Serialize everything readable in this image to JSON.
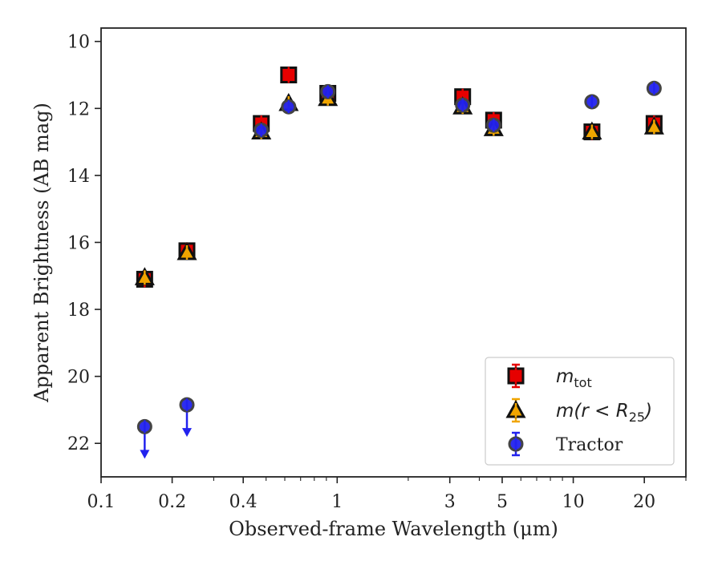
{
  "chart_data": {
    "type": "scatter",
    "xscale": "log",
    "yinverted": true,
    "xlabel": "Observed-frame Wavelength (μm)",
    "ylabel": "Apparent Brightness (AB mag)",
    "xlim": [
      0.1,
      30
    ],
    "ylim": [
      23,
      9.6
    ],
    "xticks": [
      {
        "value": 0.1,
        "label": "0.1"
      },
      {
        "value": 0.2,
        "label": "0.2"
      },
      {
        "value": 0.4,
        "label": "0.4"
      },
      {
        "value": 1,
        "label": "1"
      },
      {
        "value": 3,
        "label": "3"
      },
      {
        "value": 5,
        "label": "5"
      },
      {
        "value": 10,
        "label": "10"
      },
      {
        "value": 20,
        "label": "20"
      }
    ],
    "yticks": [
      {
        "value": 10,
        "label": "10"
      },
      {
        "value": 12,
        "label": "12"
      },
      {
        "value": 14,
        "label": "14"
      },
      {
        "value": 16,
        "label": "16"
      },
      {
        "value": 18,
        "label": "18"
      },
      {
        "value": 20,
        "label": "20"
      },
      {
        "value": 22,
        "label": "22"
      }
    ],
    "grid": false,
    "legend_position": "lower-right",
    "series": [
      {
        "name": "m_tot",
        "legend_main": "m",
        "legend_sub": "tot",
        "legend_tail": "",
        "marker": "square",
        "color": "#e60000",
        "edge": "#111111",
        "points": [
          {
            "x": 0.153,
            "y": 17.1
          },
          {
            "x": 0.231,
            "y": 16.25
          },
          {
            "x": 0.477,
            "y": 12.45
          },
          {
            "x": 0.623,
            "y": 11.0
          },
          {
            "x": 0.913,
            "y": 11.55
          },
          {
            "x": 3.4,
            "y": 11.65
          },
          {
            "x": 4.6,
            "y": 12.35
          },
          {
            "x": 12.0,
            "y": 12.7
          },
          {
            "x": 22.0,
            "y": 12.45
          }
        ]
      },
      {
        "name": "m(r < R_25)",
        "legend_main": "m(r < R",
        "legend_sub": "25",
        "legend_tail": ")",
        "marker": "triangle",
        "color": "#f0a500",
        "edge": "#111111",
        "points": [
          {
            "x": 0.153,
            "y": 17.05
          },
          {
            "x": 0.231,
            "y": 16.3
          },
          {
            "x": 0.477,
            "y": 12.7
          },
          {
            "x": 0.623,
            "y": 11.85
          },
          {
            "x": 0.913,
            "y": 11.7
          },
          {
            "x": 3.4,
            "y": 11.95
          },
          {
            "x": 4.6,
            "y": 12.6
          },
          {
            "x": 12.0,
            "y": 12.7
          },
          {
            "x": 22.0,
            "y": 12.55
          }
        ]
      },
      {
        "name": "Tractor",
        "legend_main": "Tractor",
        "legend_sub": "",
        "legend_tail": "",
        "marker": "circle",
        "color": "#2222ee",
        "edge": "#444444",
        "points": [
          {
            "x": 0.153,
            "y": 21.5,
            "upper_limit": true
          },
          {
            "x": 0.231,
            "y": 20.85,
            "upper_limit": true
          },
          {
            "x": 0.477,
            "y": 12.65
          },
          {
            "x": 0.623,
            "y": 11.95
          },
          {
            "x": 0.913,
            "y": 11.5
          },
          {
            "x": 3.4,
            "y": 11.9
          },
          {
            "x": 4.6,
            "y": 12.5
          },
          {
            "x": 12.0,
            "y": 11.8
          },
          {
            "x": 22.0,
            "y": 11.4
          }
        ]
      }
    ]
  }
}
